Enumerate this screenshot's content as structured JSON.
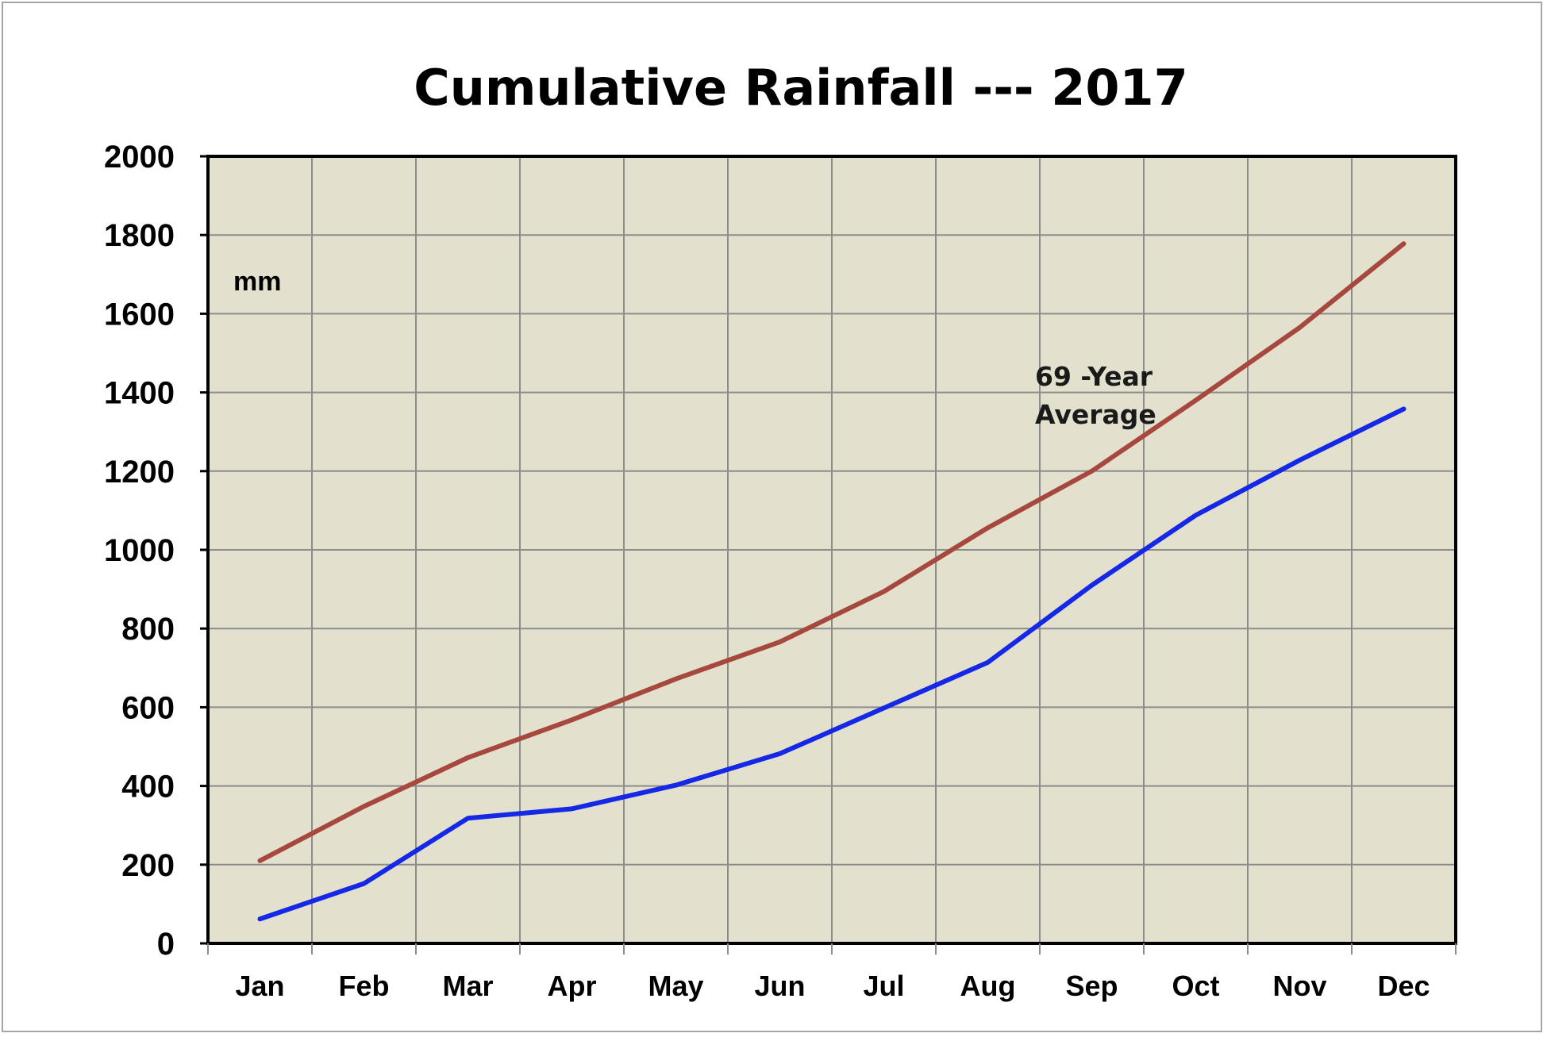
{
  "chart_data": {
    "type": "line",
    "title": "Cumulative Rainfall --- 2017",
    "unit_label": "mm",
    "xlabel": "",
    "ylabel": "",
    "categories": [
      "Jan",
      "Feb",
      "Mar",
      "Apr",
      "May",
      "Jun",
      "Jul",
      "Aug",
      "Sep",
      "Oct",
      "Nov",
      "Dec"
    ],
    "ylim": [
      0,
      2000
    ],
    "yticks": [
      "0",
      "200",
      "400",
      "600",
      "800",
      "1000",
      "1200",
      "1400",
      "1600",
      "1800",
      "2000"
    ],
    "grid": true,
    "series": [
      {
        "color": "#a6483e",
        "values": [
          210,
          348,
          472,
          568,
          672,
          766,
          894,
          1056,
          1200,
          1380,
          1565,
          1778
        ]
      },
      {
        "color": "#1428e6",
        "values": [
          62,
          152,
          318,
          342,
          402,
          482,
          598,
          714,
          910,
          1088,
          1228,
          1358
        ]
      }
    ],
    "annotations": [
      {
        "text": [
          "69 -Year",
          "Average"
        ]
      }
    ],
    "plot_background": "#e3e0ce"
  }
}
